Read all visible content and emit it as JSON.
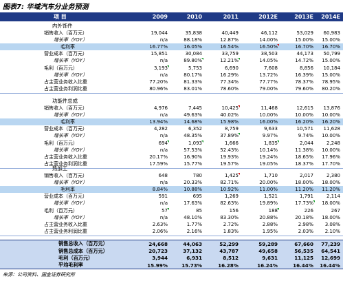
{
  "title": "图表7:  华域汽车分业务预测",
  "header": {
    "label": "项 目",
    "years": [
      "2009",
      "2010",
      "2011",
      "2012E",
      "2013E",
      "2014E"
    ]
  },
  "sections": [
    {
      "name": "内外饰件",
      "rows": [
        {
          "label": "销售收入（百万元）",
          "style": "main",
          "values": [
            "19,044",
            "35,838",
            "40,449",
            "46,112",
            "53,029",
            "60,983"
          ]
        },
        {
          "label": "增长率（YOY）",
          "style": "italic",
          "values": [
            "n/a",
            "88.18%",
            "12.87%",
            "14.00%",
            "15.00%",
            "15.00%"
          ]
        },
        {
          "label": "毛利率",
          "style": "highlight",
          "values": [
            "16.77%",
            "16.05%",
            "16.54%",
            "16.50%",
            "16.70%",
            "16.70%"
          ],
          "marks": [
            null,
            null,
            null,
            "r",
            null,
            null
          ]
        },
        {
          "label": "营业成本（百万元）",
          "style": "main",
          "values": [
            "15,851",
            "30,084",
            "33,759",
            "38,503",
            "44,173",
            "50,799"
          ]
        },
        {
          "label": "增长率（YOY）",
          "style": "italic",
          "values": [
            "n/a",
            "89.80%",
            "12.21%",
            "14.05%",
            "14.72%",
            "15.00%"
          ],
          "marks": [
            null,
            "g",
            "g",
            null,
            null,
            null
          ]
        },
        {
          "label": "毛利（百万元）",
          "style": "main",
          "values": [
            "3,193",
            "5,753",
            "6,690",
            "7,608",
            "8,856",
            "10,184"
          ],
          "marks": [
            "g",
            null,
            null,
            null,
            null,
            null
          ]
        },
        {
          "label": "增长率（YOY）",
          "style": "italic",
          "values": [
            "n/a",
            "80.17%",
            "16.29%",
            "13.72%",
            "16.39%",
            "15.00%"
          ]
        },
        {
          "label": "占主营业务收入比重",
          "style": "main",
          "values": [
            "77.20%",
            "81.33%",
            "77.34%",
            "77.77%",
            "78.37%",
            "78.95%"
          ]
        },
        {
          "label": "占主营业务利润比重",
          "style": "main",
          "values": [
            "80.96%",
            "83.01%",
            "78.60%",
            "79.00%",
            "79.60%",
            "80.20%"
          ]
        }
      ]
    },
    {
      "name": "功能件总成",
      "rows": [
        {
          "label": "销售收入（百万元）",
          "style": "main",
          "values": [
            "4,976",
            "7,445",
            "10,425",
            "11,468",
            "12,615",
            "13,876"
          ],
          "marks": [
            null,
            null,
            "r",
            null,
            null,
            null
          ]
        },
        {
          "label": "增长率（YOY）",
          "style": "italic",
          "values": [
            "n/a",
            "49.63%",
            "40.02%",
            "10.00%",
            "10.00%",
            "10.00%"
          ]
        },
        {
          "label": "毛利率",
          "style": "highlight",
          "values": [
            "13.94%",
            "14.68%",
            "15.98%",
            "16.00%",
            "16.20%",
            "16.20%"
          ]
        },
        {
          "label": "营业成本（百万元）",
          "style": "main",
          "values": [
            "4,282",
            "6,352",
            "8,759",
            "9,633",
            "10,571",
            "11,628"
          ]
        },
        {
          "label": "增长率（YOY）",
          "style": "italic",
          "values": [
            "n/a",
            "48.35%",
            "37.89%",
            "9.97%",
            "9.74%",
            "10.00%"
          ],
          "marks": [
            null,
            null,
            "g",
            null,
            null,
            null
          ]
        },
        {
          "label": "毛利（百万元）",
          "style": "main",
          "values": [
            "694",
            "1,093",
            "1,666",
            "1,835",
            "2,044",
            "2,248"
          ],
          "marks": [
            "g",
            "g",
            null,
            "g",
            null,
            null
          ]
        },
        {
          "label": "增长率（YOY）",
          "style": "italic",
          "values": [
            "n/a",
            "57.53%",
            "52.43%",
            "10.14%",
            "11.38%",
            "10.00%"
          ]
        },
        {
          "label": "占主营业务收入比重",
          "style": "main",
          "values": [
            "20.17%",
            "16.90%",
            "19.93%",
            "19.24%",
            "18.65%",
            "17.96%"
          ]
        },
        {
          "label": "占主营业务利润比重",
          "style": "main",
          "values": [
            "17.59%",
            "15.77%",
            "19.57%",
            "19.05%",
            "18.37%",
            "17.70%"
          ]
        }
      ]
    },
    {
      "name": "热加工",
      "rows": [
        {
          "label": "销售收入（百万元）",
          "style": "main",
          "values": [
            "648",
            "780",
            "1,425",
            "1,710",
            "2,017",
            "2,380"
          ],
          "marks": [
            null,
            null,
            "r",
            null,
            null,
            null
          ]
        },
        {
          "label": "增长率（YOY）",
          "style": "italic",
          "values": [
            "n/a",
            "20.33%",
            "82.71%",
            "20.00%",
            "18.00%",
            "18.00%"
          ]
        },
        {
          "label": "毛利率",
          "style": "highlight",
          "values": [
            "8.84%",
            "10.88%",
            "10.92%",
            "11.00%",
            "11.20%",
            "11.20%"
          ]
        },
        {
          "label": "营业成本（百万元）",
          "style": "main",
          "values": [
            "591",
            "695",
            "1,269",
            "1,521",
            "1,791",
            "2,114"
          ]
        },
        {
          "label": "增长率（YOY）",
          "style": "italic",
          "values": [
            "n/a",
            "17.63%",
            "82.63%",
            "19.89%",
            "17.73%",
            "18.00%"
          ],
          "marks": [
            null,
            null,
            null,
            null,
            "g",
            null
          ]
        },
        {
          "label": "毛利（百万元）",
          "style": "main",
          "values": [
            "57",
            "85",
            "156",
            "188",
            "226",
            "267"
          ],
          "marks": [
            "g",
            null,
            null,
            "g",
            null,
            null
          ]
        },
        {
          "label": "增长率（YOY）",
          "style": "italic",
          "values": [
            "n/a",
            "48.10%",
            "83.30%",
            "20.88%",
            "20.18%",
            "18.00%"
          ]
        },
        {
          "label": "占主营业务收入比重",
          "style": "main",
          "values": [
            "2.63%",
            "1.77%",
            "2.72%",
            "2.88%",
            "2.98%",
            "3.08%"
          ]
        },
        {
          "label": "占主营业务利润比重",
          "style": "main",
          "values": [
            "2.06%",
            "2.16%",
            "1.83%",
            "1.95%",
            "2.03%",
            "2.10%"
          ]
        }
      ]
    }
  ],
  "summary": [
    {
      "label": "销售总收入（百万元）",
      "values": [
        "24,668",
        "44,063",
        "52,299",
        "59,289",
        "67,660",
        "77,239"
      ]
    },
    {
      "label": "销售总成本（百万元）",
      "values": [
        "20,723",
        "37,132",
        "43,787",
        "49,658",
        "56,535",
        "64,541"
      ]
    },
    {
      "label": "毛利（百万元）",
      "values": [
        "3,944",
        "6,931",
        "8,512",
        "9,631",
        "11,125",
        "12,699"
      ]
    },
    {
      "label": "平均毛利率",
      "values": [
        "15.99%",
        "15.73%",
        "16.28%",
        "16.24%",
        "16.44%",
        "16.44%"
      ]
    }
  ],
  "source": "来源：公司资料、国金证券研究所"
}
